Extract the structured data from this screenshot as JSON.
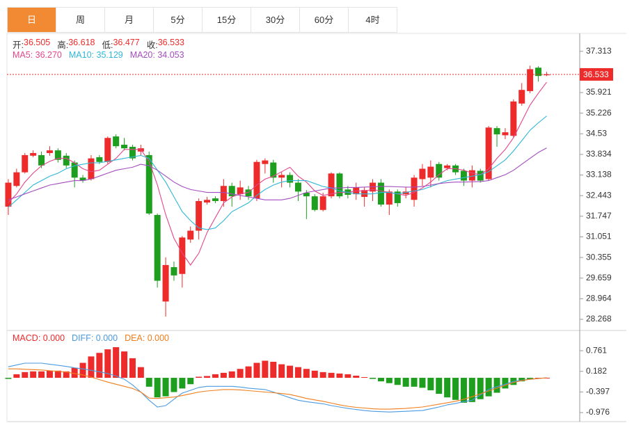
{
  "tabs": [
    "日",
    "周",
    "月",
    "5分",
    "15分",
    "30分",
    "60分",
    "4时"
  ],
  "active_tab": 0,
  "chart_data": [
    {
      "type": "candlestick",
      "ohlc_names": [
        "开",
        "高",
        "低",
        "收"
      ],
      "candles": {
        "up_color": "#ee2b2b",
        "down_color": "#1e9e1e",
        "open": [
          32.07,
          32.77,
          33.23,
          33.79,
          33.81,
          33.88,
          33.97,
          33.79,
          33.56,
          33.05,
          33.0,
          33.74,
          33.58,
          34.44,
          34.16,
          34.09,
          33.93,
          33.81,
          31.79,
          28.87,
          30.03,
          29.8,
          30.96,
          31.26,
          32.21,
          32.35,
          32.26,
          32.77,
          32.49,
          32.65,
          32.35,
          33.51,
          33.56,
          33.05,
          33.14,
          32.88,
          32.54,
          32.42,
          31.96,
          32.42,
          33.19,
          32.65,
          32.49,
          32.4,
          32.58,
          32.88,
          32.14,
          32.58,
          32.49,
          32.3,
          33.0,
          33.05,
          33.51,
          33.37,
          33.46,
          33.28,
          32.95,
          33.28,
          33.0,
          34.72,
          34.48,
          34.46,
          35.55,
          35.97,
          36.76,
          36.505
        ],
        "high": [
          33.0,
          33.35,
          33.88,
          33.97,
          33.93,
          34.11,
          34.04,
          33.88,
          33.63,
          33.14,
          33.81,
          33.81,
          34.44,
          34.51,
          34.39,
          34.16,
          34.16,
          33.93,
          31.84,
          30.36,
          30.22,
          31.08,
          31.4,
          32.35,
          32.4,
          32.42,
          33.0,
          32.88,
          32.95,
          32.77,
          33.65,
          33.7,
          33.65,
          33.23,
          33.23,
          33.0,
          32.63,
          32.49,
          32.54,
          33.23,
          33.23,
          32.77,
          32.88,
          32.72,
          33.0,
          33.0,
          32.65,
          32.65,
          32.72,
          33.14,
          33.51,
          33.63,
          33.58,
          33.51,
          33.51,
          33.35,
          33.46,
          33.35,
          34.79,
          34.79,
          34.72,
          35.69,
          36.24,
          36.83,
          36.81,
          36.618
        ],
        "low": [
          31.79,
          32.72,
          33.19,
          33.74,
          33.37,
          33.79,
          33.56,
          33.37,
          32.72,
          32.88,
          32.95,
          33.51,
          33.51,
          34.04,
          33.97,
          33.63,
          33.79,
          31.79,
          29.34,
          28.36,
          29.57,
          29.34,
          30.85,
          30.96,
          32.14,
          32.19,
          32.07,
          32.07,
          32.3,
          32.3,
          32.26,
          33.19,
          32.88,
          32.72,
          32.72,
          32.26,
          31.65,
          31.91,
          31.91,
          32.35,
          32.35,
          32.35,
          32.3,
          32.07,
          32.26,
          32.07,
          31.79,
          32.07,
          32.35,
          32.07,
          32.77,
          32.72,
          32.95,
          33.3,
          33.14,
          32.77,
          32.72,
          32.88,
          32.95,
          34.09,
          34.35,
          34.39,
          35.48,
          35.9,
          36.29,
          36.477
        ],
        "close": [
          32.88,
          33.23,
          33.81,
          33.88,
          33.46,
          33.97,
          33.65,
          33.46,
          33.05,
          32.95,
          33.7,
          33.58,
          34.39,
          34.11,
          34.04,
          33.7,
          34.04,
          31.84,
          29.57,
          30.1,
          29.75,
          31.03,
          31.26,
          32.26,
          32.3,
          32.26,
          32.77,
          32.42,
          32.72,
          32.42,
          33.58,
          33.63,
          33.05,
          33.14,
          32.88,
          32.58,
          32.42,
          31.96,
          32.42,
          33.19,
          32.42,
          32.47,
          32.72,
          32.63,
          32.88,
          32.14,
          32.58,
          32.19,
          32.58,
          33.05,
          33.35,
          33.42,
          33.05,
          33.46,
          33.23,
          32.95,
          33.3,
          32.95,
          34.74,
          34.51,
          34.58,
          35.62,
          36.01,
          36.71,
          36.48,
          36.533
        ]
      },
      "series": [
        {
          "name": "MA5",
          "color": "#e2468c",
          "last_label": "36.270",
          "values": [
            32.2,
            32.5,
            32.9,
            33.2,
            33.45,
            33.6,
            33.7,
            33.7,
            33.55,
            33.35,
            33.25,
            33.3,
            33.5,
            33.7,
            34.0,
            34.0,
            34.0,
            33.6,
            32.8,
            31.8,
            31.0,
            30.5,
            30.1,
            30.5,
            31.2,
            31.7,
            32.2,
            32.4,
            32.5,
            32.55,
            32.8,
            33.0,
            33.1,
            33.25,
            33.4,
            33.1,
            32.9,
            32.6,
            32.45,
            32.5,
            32.55,
            32.55,
            32.6,
            32.6,
            32.65,
            32.6,
            32.55,
            32.5,
            32.45,
            32.55,
            32.7,
            32.9,
            33.15,
            33.35,
            33.35,
            33.3,
            33.2,
            33.15,
            33.35,
            33.7,
            34.0,
            34.4,
            34.95,
            35.5,
            35.9,
            36.27
          ]
        },
        {
          "name": "MA10",
          "color": "#2fb7d6",
          "last_label": "35.129",
          "values": [
            32.05,
            32.3,
            32.55,
            32.8,
            32.95,
            33.1,
            33.2,
            33.35,
            33.45,
            33.5,
            33.55,
            33.55,
            33.6,
            33.65,
            33.7,
            33.75,
            33.8,
            33.7,
            33.3,
            32.9,
            32.4,
            31.9,
            31.6,
            31.35,
            31.3,
            31.35,
            31.6,
            31.9,
            32.05,
            32.2,
            32.45,
            32.65,
            32.8,
            32.9,
            32.95,
            32.95,
            32.95,
            32.85,
            32.75,
            32.7,
            32.6,
            32.55,
            32.5,
            32.5,
            32.5,
            32.55,
            32.55,
            32.5,
            32.55,
            32.6,
            32.65,
            32.75,
            32.85,
            32.95,
            33.0,
            33.05,
            33.1,
            33.15,
            33.25,
            33.45,
            33.65,
            33.95,
            34.3,
            34.65,
            34.9,
            35.129
          ]
        },
        {
          "name": "MA20",
          "color": "#a34cbf",
          "last_label": "34.053",
          "values": [
            32.3,
            32.4,
            32.5,
            32.6,
            32.7,
            32.8,
            32.85,
            32.9,
            32.95,
            32.95,
            33.0,
            33.1,
            33.2,
            33.3,
            33.35,
            33.4,
            33.5,
            33.45,
            33.3,
            33.1,
            32.9,
            32.75,
            32.65,
            32.6,
            32.55,
            32.55,
            32.55,
            32.5,
            32.45,
            32.4,
            32.35,
            32.3,
            32.3,
            32.3,
            32.35,
            32.45,
            32.55,
            32.6,
            32.65,
            32.7,
            32.7,
            32.72,
            32.72,
            32.73,
            32.74,
            32.75,
            32.75,
            32.74,
            32.73,
            32.73,
            32.75,
            32.8,
            32.85,
            32.88,
            32.9,
            32.9,
            32.91,
            32.92,
            32.95,
            33.05,
            33.15,
            33.3,
            33.5,
            33.7,
            33.9,
            34.053
          ]
        }
      ],
      "ylim": [
        28.01,
        37.87
      ],
      "yticks": [
        37.313,
        35.921,
        35.226,
        34.53,
        33.834,
        33.138,
        32.443,
        31.747,
        31.051,
        30.355,
        29.659,
        28.964,
        28.268
      ],
      "last_price_line": true
    },
    {
      "type": "macd",
      "bars": {
        "name": "MACD",
        "color": "#ee2b2b",
        "up_color": "#ee2b2b",
        "down_color": "#1e9e1e",
        "last_label": "0.000",
        "values": [
          -0.03,
          0.1,
          0.16,
          0.18,
          0.18,
          0.2,
          0.2,
          0.18,
          0.28,
          0.42,
          0.6,
          0.7,
          0.8,
          0.86,
          0.74,
          0.55,
          0.3,
          -0.25,
          -0.55,
          -0.52,
          -0.4,
          -0.3,
          -0.18,
          0.03,
          0.05,
          0.1,
          0.14,
          0.18,
          0.25,
          0.32,
          0.42,
          0.48,
          0.45,
          0.38,
          0.34,
          0.3,
          0.25,
          0.2,
          0.16,
          0.14,
          0.12,
          0.1,
          0.06,
          0.02,
          -0.03,
          -0.1,
          -0.15,
          -0.2,
          -0.25,
          -0.25,
          -0.28,
          -0.35,
          -0.45,
          -0.55,
          -0.62,
          -0.7,
          -0.68,
          -0.6,
          -0.52,
          -0.42,
          -0.3,
          -0.2,
          -0.1,
          -0.05,
          0,
          0
        ]
      },
      "series": [
        {
          "name": "DIFF",
          "color": "#4a9be0",
          "last_label": "0.000",
          "values": [
            0.31,
            0.36,
            0.41,
            0.41,
            0.41,
            0.38,
            0.35,
            0.32,
            0.28,
            0.25,
            0.21,
            0.17,
            0.12,
            0.05,
            -0.04,
            -0.2,
            -0.4,
            -0.63,
            -0.82,
            -0.78,
            -0.6,
            -0.43,
            -0.35,
            -0.27,
            -0.24,
            -0.24,
            -0.24,
            -0.24,
            -0.26,
            -0.29,
            -0.31,
            -0.33,
            -0.4,
            -0.48,
            -0.56,
            -0.63,
            -0.67,
            -0.7,
            -0.73,
            -0.78,
            -0.82,
            -0.86,
            -0.89,
            -0.92,
            -0.94,
            -0.95,
            -0.96,
            -0.95,
            -0.94,
            -0.93,
            -0.92,
            -0.87,
            -0.82,
            -0.76,
            -0.72,
            -0.67,
            -0.63,
            -0.48,
            -0.33,
            -0.25,
            -0.18,
            -0.1,
            -0.07,
            -0.04,
            -0.02,
            0
          ]
        },
        {
          "name": "DEA",
          "color": "#f07d1c",
          "last_label": "0.000",
          "values": [
            0.25,
            0.25,
            0.24,
            0.23,
            0.22,
            0.2,
            0.18,
            0.16,
            0.12,
            0.08,
            0.02,
            -0.05,
            -0.12,
            -0.18,
            -0.24,
            -0.3,
            -0.4,
            -0.57,
            -0.58,
            -0.56,
            -0.54,
            -0.5,
            -0.45,
            -0.4,
            -0.37,
            -0.35,
            -0.33,
            -0.33,
            -0.34,
            -0.36,
            -0.38,
            -0.4,
            -0.42,
            -0.44,
            -0.47,
            -0.52,
            -0.58,
            -0.62,
            -0.66,
            -0.71,
            -0.76,
            -0.8,
            -0.83,
            -0.85,
            -0.87,
            -0.88,
            -0.88,
            -0.87,
            -0.86,
            -0.84,
            -0.82,
            -0.78,
            -0.74,
            -0.7,
            -0.66,
            -0.6,
            -0.53,
            -0.45,
            -0.37,
            -0.29,
            -0.21,
            -0.13,
            -0.08,
            -0.04,
            -0.02,
            0
          ]
        }
      ],
      "ylim": [
        -1.23,
        1.29
      ],
      "yticks": [
        0.761,
        0.182,
        -0.397,
        -0.976
      ]
    }
  ]
}
